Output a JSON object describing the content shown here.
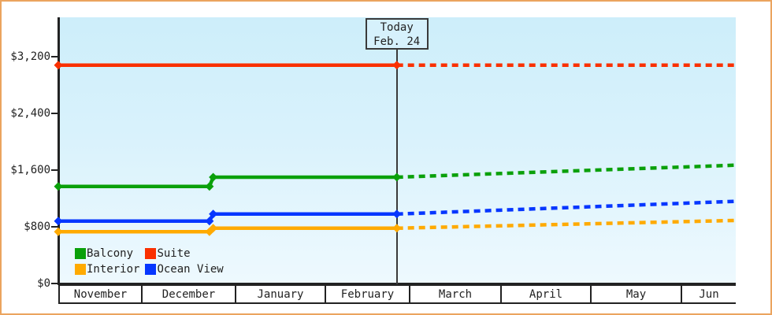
{
  "chart_data": {
    "type": "line",
    "title": "",
    "description": "Cruise fare price history by cabin type with solid history lines and dotted forecast lines after today marker",
    "x_categories": [
      "November",
      "December",
      "January",
      "February",
      "March",
      "April",
      "May",
      "Jun"
    ],
    "y_ticks": [
      {
        "label": "$0",
        "value": 0
      },
      {
        "label": "$800",
        "value": 800
      },
      {
        "label": "$1,600",
        "value": 1600
      },
      {
        "label": "$2,400",
        "value": 2400
      },
      {
        "label": "$3,200",
        "value": 3200
      }
    ],
    "y_axis": {
      "range": [
        0,
        3750
      ],
      "grid": false
    },
    "x_axis": {
      "unit": "months since Nov 1",
      "range": [
        0,
        8
      ]
    },
    "today": {
      "line1": "Today",
      "line2": "Feb. 24",
      "x": 3.857
    },
    "series": [
      {
        "name": "Suite",
        "color": "#fa3000",
        "points": [
          {
            "x": 0,
            "y": 3080
          },
          {
            "x": 3.857,
            "y": 3080
          },
          {
            "x": 8,
            "y": 3080
          }
        ],
        "markers": [
          0,
          3.857
        ],
        "forecast_from": 3.857
      },
      {
        "name": "Balcony",
        "color": "#0aa00a",
        "points": [
          {
            "x": 0,
            "y": 1370
          },
          {
            "x": 1.73,
            "y": 1370
          },
          {
            "x": 1.77,
            "y": 1500
          },
          {
            "x": 3.857,
            "y": 1500
          },
          {
            "x": 8,
            "y": 1670
          }
        ],
        "markers": [
          0,
          1.73,
          1.77,
          3.857
        ],
        "forecast_from": 3.857
      },
      {
        "name": "Ocean View",
        "color": "#0636ff",
        "points": [
          {
            "x": 0,
            "y": 880
          },
          {
            "x": 1.73,
            "y": 880
          },
          {
            "x": 1.77,
            "y": 980
          },
          {
            "x": 3.857,
            "y": 980
          },
          {
            "x": 8,
            "y": 1160
          }
        ],
        "markers": [
          0,
          1.73,
          1.77,
          3.857
        ],
        "forecast_from": 3.857
      },
      {
        "name": "Interior",
        "color": "#ffaa00",
        "points": [
          {
            "x": 0,
            "y": 730
          },
          {
            "x": 1.73,
            "y": 730
          },
          {
            "x": 1.77,
            "y": 780
          },
          {
            "x": 3.857,
            "y": 780
          },
          {
            "x": 8,
            "y": 890
          }
        ],
        "markers": [
          0,
          1.73,
          1.77,
          3.857
        ],
        "forecast_from": 3.857
      }
    ],
    "legend": {
      "position": "inside-bottom-left",
      "items": [
        {
          "label": "Balcony",
          "color": "#0aa00a"
        },
        {
          "label": "Suite",
          "color": "#fa3000"
        },
        {
          "label": "Interior",
          "color": "#ffaa00"
        },
        {
          "label": "Ocean View",
          "color": "#0636ff"
        }
      ]
    }
  },
  "colors": {
    "frame_border": "#eba45f",
    "axis": "#222222",
    "plot_bg_top": "#cdeefa",
    "plot_bg_bottom": "#eef9fe",
    "today_line": "#3a3a3a",
    "today_box_bg": "#d6f1fc",
    "month_cell_bg": "#ffffff",
    "text": "#222222"
  }
}
